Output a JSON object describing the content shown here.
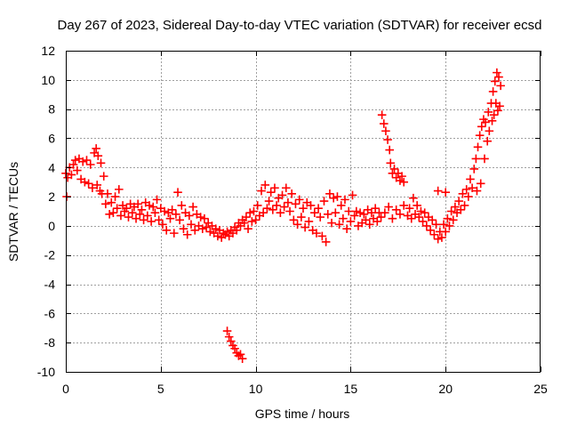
{
  "chart_data": {
    "type": "scatter",
    "title": "Day 267 of 2023, Sidereal Day-to-day VTEC variation (SDTVAR) for receiver ecsd",
    "xlabel": "GPS time / hours",
    "ylabel": "SDTVAR / TECUs",
    "xlim": [
      0,
      25
    ],
    "ylim": [
      -10,
      12
    ],
    "x_ticks": [
      "0",
      "5",
      "10",
      "15",
      "20",
      "25"
    ],
    "y_ticks": [
      "12",
      "10",
      "8",
      "6",
      "4",
      "2",
      "0",
      "-2",
      "-4",
      "-6",
      "-8",
      "-10"
    ],
    "grid": true,
    "marker": "plus",
    "series": [
      {
        "name": "SDTVAR",
        "color": "#ff0000",
        "points": [
          [
            0.0,
            3.6
          ],
          [
            0.05,
            2.0
          ],
          [
            0.1,
            3.3
          ],
          [
            0.2,
            4.0
          ],
          [
            0.3,
            3.5
          ],
          [
            0.4,
            4.2
          ],
          [
            0.5,
            4.5
          ],
          [
            0.6,
            3.8
          ],
          [
            0.7,
            4.6
          ],
          [
            0.8,
            3.2
          ],
          [
            0.9,
            4.4
          ],
          [
            1.0,
            3.0
          ],
          [
            1.1,
            4.5
          ],
          [
            1.2,
            2.9
          ],
          [
            1.3,
            4.2
          ],
          [
            1.4,
            2.6
          ],
          [
            1.5,
            5.0
          ],
          [
            1.6,
            5.3
          ],
          [
            1.65,
            2.8
          ],
          [
            1.7,
            4.8
          ],
          [
            1.8,
            2.4
          ],
          [
            1.85,
            4.3
          ],
          [
            1.9,
            2.2
          ],
          [
            2.0,
            3.4
          ],
          [
            2.1,
            1.5
          ],
          [
            2.2,
            2.2
          ],
          [
            2.3,
            0.8
          ],
          [
            2.4,
            1.6
          ],
          [
            2.5,
            0.9
          ],
          [
            2.6,
            2.0
          ],
          [
            2.7,
            1.2
          ],
          [
            2.8,
            2.5
          ],
          [
            2.9,
            0.7
          ],
          [
            3.0,
            1.4
          ],
          [
            3.1,
            1.0
          ],
          [
            3.2,
            1.2
          ],
          [
            3.3,
            0.6
          ],
          [
            3.4,
            1.5
          ],
          [
            3.5,
            0.9
          ],
          [
            3.6,
            1.3
          ],
          [
            3.7,
            0.5
          ],
          [
            3.8,
            1.5
          ],
          [
            3.9,
            0.8
          ],
          [
            4.0,
            1.1
          ],
          [
            4.1,
            0.4
          ],
          [
            4.2,
            1.6
          ],
          [
            4.3,
            0.7
          ],
          [
            4.4,
            1.4
          ],
          [
            4.5,
            0.3
          ],
          [
            4.6,
            1.3
          ],
          [
            4.7,
            0.9
          ],
          [
            4.8,
            1.8
          ],
          [
            4.9,
            0.4
          ],
          [
            5.0,
            1.2
          ],
          [
            5.1,
            0.1
          ],
          [
            5.2,
            1.0
          ],
          [
            5.3,
            -0.3
          ],
          [
            5.4,
            0.9
          ],
          [
            5.5,
            0.5
          ],
          [
            5.6,
            1.1
          ],
          [
            5.7,
            -0.5
          ],
          [
            5.8,
            0.8
          ],
          [
            5.9,
            2.3
          ],
          [
            6.0,
            0.4
          ],
          [
            6.1,
            1.4
          ],
          [
            6.2,
            -0.2
          ],
          [
            6.3,
            0.9
          ],
          [
            6.4,
            -0.6
          ],
          [
            6.5,
            0.7
          ],
          [
            6.6,
            0.1
          ],
          [
            6.7,
            1.3
          ],
          [
            6.8,
            -0.3
          ],
          [
            6.9,
            0.8
          ],
          [
            7.0,
            0.0
          ],
          [
            7.1,
            0.6
          ],
          [
            7.2,
            -0.2
          ],
          [
            7.3,
            0.5
          ],
          [
            7.4,
            -0.1
          ],
          [
            7.5,
            0.2
          ],
          [
            7.6,
            -0.4
          ],
          [
            7.7,
            0.0
          ],
          [
            7.8,
            -0.5
          ],
          [
            7.9,
            -0.2
          ],
          [
            8.0,
            -0.7
          ],
          [
            8.1,
            -0.3
          ],
          [
            8.2,
            -0.8
          ],
          [
            8.3,
            -0.5
          ],
          [
            8.4,
            -0.6
          ],
          [
            8.5,
            -0.4
          ],
          [
            8.6,
            -0.7
          ],
          [
            8.7,
            -0.3
          ],
          [
            8.8,
            -0.5
          ],
          [
            8.9,
            -0.1
          ],
          [
            9.0,
            -0.3
          ],
          [
            9.1,
            0.2
          ],
          [
            9.2,
            0.0
          ],
          [
            9.3,
            0.4
          ],
          [
            9.4,
            0.2
          ],
          [
            9.5,
            0.6
          ],
          [
            9.6,
            -0.2
          ],
          [
            9.7,
            0.9
          ],
          [
            9.8,
            0.3
          ],
          [
            9.9,
            1.0
          ],
          [
            10.0,
            0.4
          ],
          [
            10.1,
            1.4
          ],
          [
            10.2,
            0.7
          ],
          [
            10.3,
            2.4
          ],
          [
            10.4,
            0.9
          ],
          [
            10.5,
            2.8
          ],
          [
            10.6,
            1.2
          ],
          [
            10.7,
            1.7
          ],
          [
            10.8,
            2.3
          ],
          [
            10.9,
            1.1
          ],
          [
            11.0,
            2.6
          ],
          [
            11.1,
            1.4
          ],
          [
            11.2,
            1.9
          ],
          [
            11.3,
            0.9
          ],
          [
            11.4,
            2.1
          ],
          [
            11.5,
            1.3
          ],
          [
            11.6,
            2.6
          ],
          [
            11.7,
            1.6
          ],
          [
            11.8,
            1.0
          ],
          [
            11.9,
            2.2
          ],
          [
            12.0,
            0.4
          ],
          [
            12.1,
            1.5
          ],
          [
            12.2,
            0.1
          ],
          [
            12.3,
            1.8
          ],
          [
            12.4,
            0.6
          ],
          [
            12.5,
            1.2
          ],
          [
            12.6,
            -0.1
          ],
          [
            12.7,
            1.6
          ],
          [
            12.8,
            0.3
          ],
          [
            12.9,
            1.4
          ],
          [
            13.0,
            -0.3
          ],
          [
            13.1,
            0.9
          ],
          [
            13.2,
            -0.5
          ],
          [
            13.3,
            1.2
          ],
          [
            13.4,
            0.6
          ],
          [
            13.5,
            -0.7
          ],
          [
            13.6,
            1.7
          ],
          [
            13.7,
            -1.1
          ],
          [
            13.8,
            0.8
          ],
          [
            13.9,
            2.2
          ],
          [
            14.0,
            0.2
          ],
          [
            14.1,
            1.9
          ],
          [
            14.2,
            0.9
          ],
          [
            14.3,
            2.0
          ],
          [
            14.4,
            0.1
          ],
          [
            14.5,
            1.4
          ],
          [
            14.6,
            0.5
          ],
          [
            14.7,
            1.8
          ],
          [
            14.8,
            -0.2
          ],
          [
            14.9,
            1.0
          ],
          [
            15.0,
            0.3
          ],
          [
            15.1,
            2.1
          ],
          [
            15.2,
            0.7
          ],
          [
            15.3,
            1.0
          ],
          [
            15.4,
            0.0
          ],
          [
            15.5,
            0.9
          ],
          [
            15.6,
            0.2
          ],
          [
            15.7,
            0.8
          ],
          [
            15.8,
            0.4
          ],
          [
            15.9,
            1.1
          ],
          [
            16.0,
            0.1
          ],
          [
            16.1,
            0.9
          ],
          [
            16.2,
            0.5
          ],
          [
            16.3,
            1.2
          ],
          [
            16.4,
            0.3
          ],
          [
            16.5,
            0.9
          ],
          [
            16.6,
            0.6
          ],
          [
            16.65,
            7.6
          ],
          [
            16.75,
            7.0
          ],
          [
            16.85,
            6.5
          ],
          [
            16.95,
            5.9
          ],
          [
            17.05,
            5.2
          ],
          [
            17.1,
            4.3
          ],
          [
            17.2,
            3.6
          ],
          [
            17.3,
            3.9
          ],
          [
            17.4,
            3.3
          ],
          [
            17.5,
            3.6
          ],
          [
            17.6,
            3.1
          ],
          [
            17.7,
            3.4
          ],
          [
            17.8,
            3.0
          ],
          [
            16.8,
            0.9
          ],
          [
            17.0,
            1.3
          ],
          [
            17.2,
            0.5
          ],
          [
            17.4,
            1.1
          ],
          [
            17.6,
            0.8
          ],
          [
            17.8,
            1.4
          ],
          [
            18.0,
            0.7
          ],
          [
            18.1,
            1.2
          ],
          [
            18.2,
            0.5
          ],
          [
            18.3,
            1.9
          ],
          [
            18.4,
            0.8
          ],
          [
            18.5,
            1.4
          ],
          [
            18.6,
            0.6
          ],
          [
            18.7,
            1.0
          ],
          [
            18.8,
            0.3
          ],
          [
            18.9,
            0.9
          ],
          [
            19.0,
            0.0
          ],
          [
            19.1,
            0.6
          ],
          [
            19.2,
            -0.3
          ],
          [
            19.3,
            0.4
          ],
          [
            19.4,
            -0.6
          ],
          [
            19.5,
            0.1
          ],
          [
            19.6,
            -0.9
          ],
          [
            19.7,
            -0.4
          ],
          [
            19.8,
            -0.8
          ],
          [
            19.9,
            0.1
          ],
          [
            20.0,
            -0.4
          ],
          [
            20.1,
            0.5
          ],
          [
            20.2,
            0.0
          ],
          [
            20.3,
            1.0
          ],
          [
            20.4,
            0.4
          ],
          [
            20.5,
            1.3
          ],
          [
            20.6,
            0.9
          ],
          [
            20.7,
            1.7
          ],
          [
            20.8,
            1.1
          ],
          [
            20.9,
            2.2
          ],
          [
            21.0,
            1.4
          ],
          [
            21.1,
            2.5
          ],
          [
            21.2,
            2.0
          ],
          [
            21.3,
            3.2
          ],
          [
            21.4,
            2.6
          ],
          [
            21.5,
            3.9
          ],
          [
            21.6,
            4.6
          ],
          [
            21.65,
            2.4
          ],
          [
            21.7,
            5.4
          ],
          [
            21.8,
            6.2
          ],
          [
            21.85,
            2.9
          ],
          [
            21.9,
            6.8
          ],
          [
            22.0,
            7.3
          ],
          [
            22.05,
            4.6
          ],
          [
            22.1,
            7.1
          ],
          [
            22.2,
            5.8
          ],
          [
            22.25,
            7.8
          ],
          [
            22.3,
            6.5
          ],
          [
            22.4,
            8.4
          ],
          [
            22.45,
            7.2
          ],
          [
            22.5,
            9.2
          ],
          [
            22.55,
            7.6
          ],
          [
            22.6,
            9.9
          ],
          [
            22.65,
            8.4
          ],
          [
            22.7,
            10.5
          ],
          [
            22.75,
            7.9
          ],
          [
            22.8,
            10.2
          ],
          [
            22.85,
            8.2
          ],
          [
            22.9,
            9.6
          ],
          [
            20.0,
            2.3
          ],
          [
            19.6,
            2.4
          ],
          [
            8.5,
            -7.2
          ],
          [
            8.6,
            -7.6
          ],
          [
            8.7,
            -7.9
          ],
          [
            8.8,
            -8.2
          ],
          [
            8.9,
            -8.4
          ],
          [
            9.0,
            -8.7
          ],
          [
            9.1,
            -8.9
          ],
          [
            9.2,
            -8.8
          ],
          [
            9.3,
            -9.1
          ]
        ]
      }
    ]
  }
}
